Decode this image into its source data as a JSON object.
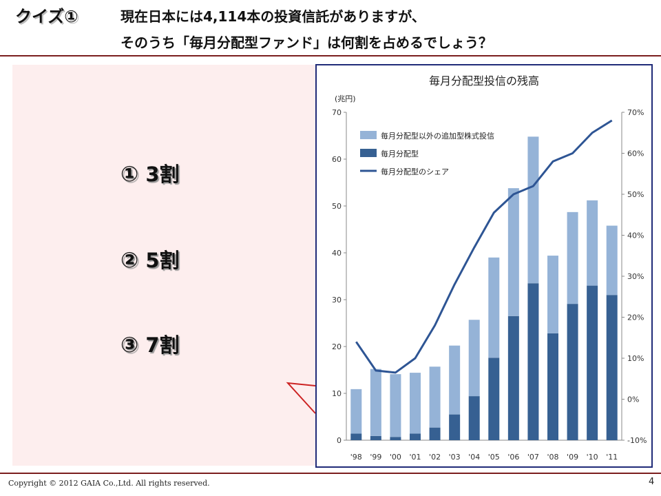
{
  "slide": {
    "quiz_label": "クイズ①",
    "question_line1": "現在日本には4,114本の投資信託がありますが、",
    "question_line2": "そのうち「毎月分配型ファンド」は何割を占めるでしょう？",
    "options": [
      {
        "num": "①",
        "text": "3割"
      },
      {
        "num": "②",
        "text": "5割"
      },
      {
        "num": "③",
        "text": "7割"
      }
    ],
    "copyright": "Copyright © 2012 GAIA Co.,Ltd. All rights reserved.",
    "page_number": "4"
  },
  "chart_data": {
    "type": "bar",
    "title": "毎月分配型投信の残高",
    "ylabel": "(兆円)",
    "categories": [
      "'98",
      "'99",
      "'00",
      "'01",
      "'02",
      "'03",
      "'04",
      "'05",
      "'06",
      "'07",
      "'08",
      "'09",
      "'10",
      "'11"
    ],
    "ylim": [
      0,
      70
    ],
    "yticks": [
      0,
      10,
      20,
      30,
      40,
      50,
      60,
      70
    ],
    "y2lim": [
      -10,
      70
    ],
    "y2ticks": [
      "-10%",
      "0%",
      "10%",
      "20%",
      "30%",
      "40%",
      "50%",
      "60%",
      "70%"
    ],
    "stacked": true,
    "series": [
      {
        "name": "毎月分配型以外の追加型株式投信",
        "kind": "bar",
        "color": "#95b3d7",
        "values": [
          9.5,
          14.3,
          13.4,
          13.0,
          13.0,
          14.7,
          16.3,
          21.4,
          27.3,
          31.3,
          16.6,
          19.6,
          18.2,
          14.8
        ]
      },
      {
        "name": "毎月分配型",
        "kind": "bar",
        "color": "#366092",
        "values": [
          1.4,
          0.9,
          0.7,
          1.4,
          2.7,
          5.5,
          9.4,
          17.6,
          26.5,
          33.5,
          22.8,
          29.1,
          33.0,
          31.0
        ]
      },
      {
        "name": "毎月分配型のシェア",
        "kind": "line",
        "axis": "right",
        "color": "#2e5594",
        "values": [
          14,
          7,
          6.5,
          10,
          18,
          28,
          37,
          45.5,
          50,
          52,
          58,
          60,
          65,
          68
        ]
      }
    ],
    "legend_position": "top-left",
    "grid": false
  }
}
